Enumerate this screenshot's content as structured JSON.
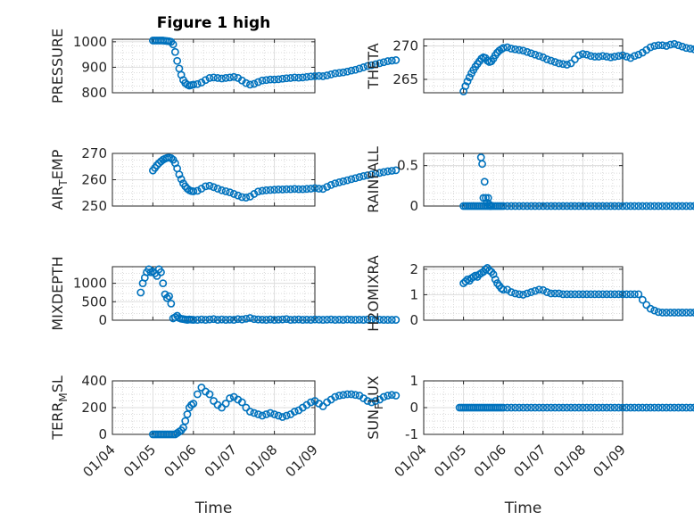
{
  "figure": {
    "title": "Figure 1 high"
  },
  "marker_color": "#0072bd",
  "chart_data": [
    {
      "type": "scatter",
      "name": "pressure",
      "ylabel": "PRESSURE",
      "ylabel_sub": "",
      "ylim": [
        800,
        1010
      ],
      "yticks": [
        800,
        900,
        1000
      ],
      "ytick_labels": [
        "800",
        "900",
        "1000"
      ],
      "xticks": [],
      "xtick_labels": [],
      "xlabel": "",
      "title": "Figure 1 high",
      "x": [
        1.0,
        1.05,
        1.1,
        1.15,
        1.2,
        1.25,
        1.3,
        1.35,
        1.4,
        1.45,
        1.5,
        1.55,
        1.6,
        1.65,
        1.7,
        1.75,
        1.8,
        1.85,
        1.9,
        1.95,
        2.0,
        2.1,
        2.2,
        2.3,
        2.4,
        2.5,
        2.6,
        2.7,
        2.8,
        2.9,
        3.0,
        3.1,
        3.2,
        3.3,
        3.4,
        3.5,
        3.6,
        3.7,
        3.8,
        3.9,
        4.0,
        4.1,
        4.2,
        4.3,
        4.4,
        4.5,
        4.6,
        4.7,
        4.8,
        4.9,
        5.0,
        5.1,
        5.2,
        5.3,
        5.4,
        5.5,
        5.6,
        5.7,
        5.8,
        5.9,
        6.0,
        6.1,
        6.2,
        6.3,
        6.4,
        6.5,
        6.6,
        6.7,
        6.8,
        6.9,
        7.0
      ],
      "y": [
        1005,
        1005,
        1005,
        1005,
        1005,
        1005,
        1004,
        1003,
        1002,
        1000,
        990,
        960,
        925,
        895,
        870,
        850,
        838,
        832,
        828,
        830,
        832,
        834,
        840,
        850,
        858,
        860,
        858,
        856,
        858,
        860,
        862,
        858,
        848,
        838,
        832,
        835,
        842,
        848,
        850,
        852,
        852,
        853,
        855,
        857,
        858,
        860,
        859,
        860,
        862,
        864,
        865,
        866,
        865,
        868,
        872,
        876,
        878,
        880,
        883,
        887,
        890,
        895,
        900,
        905,
        908,
        912,
        916,
        920,
        924,
        926,
        928
      ]
    },
    {
      "type": "scatter",
      "name": "theta",
      "ylabel": "THETA",
      "ylabel_sub": "",
      "ylim": [
        263,
        271
      ],
      "yticks": [
        265,
        270
      ],
      "ytick_labels": [
        "265",
        "270"
      ],
      "xticks": [],
      "xtick_labels": [],
      "xlabel": "",
      "title": "",
      "x": [
        1.0,
        1.05,
        1.1,
        1.15,
        1.2,
        1.25,
        1.3,
        1.35,
        1.4,
        1.45,
        1.5,
        1.55,
        1.6,
        1.65,
        1.7,
        1.75,
        1.8,
        1.85,
        1.9,
        1.95,
        2.0,
        2.1,
        2.2,
        2.3,
        2.4,
        2.5,
        2.6,
        2.7,
        2.8,
        2.9,
        3.0,
        3.1,
        3.2,
        3.3,
        3.4,
        3.5,
        3.6,
        3.7,
        3.8,
        3.9,
        4.0,
        4.1,
        4.2,
        4.3,
        4.4,
        4.5,
        4.6,
        4.7,
        4.8,
        4.9,
        5.0,
        5.1,
        5.2,
        5.3,
        5.4,
        5.5,
        5.6,
        5.7,
        5.8,
        5.9,
        6.0,
        6.1,
        6.2,
        6.3,
        6.4,
        6.5,
        6.6,
        6.7,
        6.8,
        6.9,
        7.0
      ],
      "y": [
        263.2,
        264.0,
        264.7,
        265.3,
        265.9,
        266.4,
        266.9,
        267.3,
        267.7,
        268.1,
        268.3,
        268.2,
        267.8,
        267.6,
        267.7,
        268.1,
        268.6,
        269.0,
        269.3,
        269.5,
        269.7,
        269.8,
        269.6,
        269.5,
        269.4,
        269.3,
        269.1,
        268.9,
        268.7,
        268.5,
        268.3,
        268.0,
        267.8,
        267.6,
        267.4,
        267.3,
        267.2,
        267.4,
        268.0,
        268.6,
        268.8,
        268.7,
        268.5,
        268.4,
        268.4,
        268.5,
        268.4,
        268.3,
        268.4,
        268.5,
        268.6,
        268.4,
        268.2,
        268.5,
        268.7,
        269.0,
        269.4,
        269.8,
        270.0,
        270.1,
        270.1,
        270.0,
        270.2,
        270.3,
        270.1,
        269.9,
        269.7,
        269.6,
        269.5,
        269.4,
        269.3
      ]
    },
    {
      "type": "scatter",
      "name": "air-temp",
      "ylabel": "AIR",
      "ylabel_sub": "T",
      "ylabel_tail": "EMP",
      "ylim": [
        250,
        270
      ],
      "yticks": [
        250,
        260,
        270
      ],
      "ytick_labels": [
        "250",
        "260",
        "270"
      ],
      "xticks": [],
      "xtick_labels": [],
      "xlabel": "",
      "title": "",
      "x": [
        1.0,
        1.05,
        1.1,
        1.15,
        1.2,
        1.25,
        1.3,
        1.35,
        1.4,
        1.45,
        1.5,
        1.55,
        1.6,
        1.65,
        1.7,
        1.75,
        1.8,
        1.85,
        1.9,
        1.95,
        2.0,
        2.1,
        2.2,
        2.3,
        2.4,
        2.5,
        2.6,
        2.7,
        2.8,
        2.9,
        3.0,
        3.1,
        3.2,
        3.3,
        3.4,
        3.5,
        3.6,
        3.7,
        3.8,
        3.9,
        4.0,
        4.1,
        4.2,
        4.3,
        4.4,
        4.5,
        4.6,
        4.7,
        4.8,
        4.9,
        5.0,
        5.1,
        5.2,
        5.3,
        5.4,
        5.5,
        5.6,
        5.7,
        5.8,
        5.9,
        6.0,
        6.1,
        6.2,
        6.3,
        6.4,
        6.5,
        6.6,
        6.7,
        6.8,
        6.9,
        7.0
      ],
      "y": [
        263.5,
        264.5,
        265.5,
        266.3,
        267.0,
        267.6,
        268.0,
        268.3,
        268.4,
        268.2,
        267.6,
        266.3,
        264.3,
        262.0,
        260.2,
        258.6,
        257.5,
        256.6,
        256.0,
        255.7,
        255.6,
        255.8,
        256.6,
        257.5,
        257.7,
        257.2,
        256.6,
        256.0,
        255.6,
        255.2,
        254.6,
        254.0,
        253.4,
        253.2,
        253.6,
        254.6,
        255.5,
        255.8,
        256.0,
        256.1,
        256.2,
        256.3,
        256.3,
        256.4,
        256.4,
        256.5,
        256.4,
        256.4,
        256.5,
        256.6,
        256.8,
        256.6,
        256.5,
        257.3,
        258.0,
        258.6,
        259.0,
        259.4,
        259.8,
        260.2,
        260.6,
        261.0,
        261.4,
        261.7,
        262.0,
        262.3,
        262.6,
        262.9,
        263.2,
        263.4,
        263.6
      ]
    },
    {
      "type": "scatter",
      "name": "rainfall",
      "ylabel": "RAINFALL",
      "ylabel_sub": "",
      "ylim": [
        0,
        0.65
      ],
      "yticks": [
        0,
        0.5
      ],
      "ytick_labels": [
        "0",
        "0.5"
      ],
      "xticks": [],
      "xtick_labels": [],
      "xlabel": "",
      "title": "",
      "x": [
        1.0,
        1.05,
        1.1,
        1.15,
        1.2,
        1.25,
        1.3,
        1.35,
        1.4,
        1.45,
        1.5,
        1.55,
        1.6,
        1.65,
        1.7,
        1.75,
        1.8,
        1.85,
        1.9,
        1.95,
        2.0,
        2.1,
        2.2,
        2.3,
        2.4,
        2.5,
        2.6,
        2.7,
        2.8,
        2.9,
        3.0,
        3.1,
        3.2,
        3.3,
        3.4,
        3.5,
        3.6,
        3.7,
        3.8,
        3.9,
        4.0,
        4.1,
        4.2,
        4.3,
        4.4,
        4.5,
        4.6,
        4.7,
        4.8,
        4.9,
        5.0,
        5.1,
        5.2,
        5.3,
        5.4,
        5.5,
        5.6,
        5.7,
        5.8,
        5.9,
        6.0,
        6.1,
        6.2,
        6.3,
        6.4,
        6.5,
        6.6,
        6.7,
        6.8,
        6.9,
        7.0,
        1.44,
        1.47,
        1.5,
        1.53,
        1.56,
        1.59,
        1.62,
        1.65,
        1.68
      ],
      "y": [
        0,
        0,
        0,
        0,
        0,
        0,
        0,
        0,
        0,
        0,
        0,
        0,
        0,
        0,
        0,
        0,
        0,
        0,
        0,
        0,
        0,
        0,
        0,
        0,
        0,
        0,
        0,
        0,
        0,
        0,
        0,
        0,
        0,
        0,
        0,
        0,
        0,
        0,
        0,
        0,
        0,
        0,
        0,
        0,
        0,
        0,
        0,
        0,
        0,
        0,
        0,
        0,
        0,
        0,
        0,
        0,
        0,
        0,
        0,
        0,
        0,
        0,
        0,
        0,
        0,
        0,
        0,
        0,
        0,
        0,
        0,
        0.6,
        0.52,
        0.1,
        0.3,
        0.1,
        0.04,
        0.1,
        0.02,
        0
      ]
    },
    {
      "type": "scatter",
      "name": "mixdepth",
      "ylabel": "MIXDEPTH",
      "ylabel_sub": "",
      "ylim": [
        0,
        1450
      ],
      "yticks": [
        0,
        500,
        1000
      ],
      "ytick_labels": [
        "0",
        "500",
        "1000"
      ],
      "xticks": [],
      "xtick_labels": [],
      "xlabel": "",
      "title": "",
      "x": [
        0.7,
        0.75,
        0.8,
        0.85,
        0.9,
        0.95,
        1.0,
        1.05,
        1.1,
        1.15,
        1.2,
        1.25,
        1.3,
        1.35,
        1.4,
        1.45,
        1.5,
        1.55,
        1.6,
        1.65,
        1.7,
        1.75,
        1.8,
        1.85,
        1.9,
        1.95,
        2.0,
        2.1,
        2.2,
        2.3,
        2.4,
        2.5,
        2.6,
        2.7,
        2.8,
        2.9,
        3.0,
        3.1,
        3.2,
        3.3,
        3.4,
        3.5,
        3.6,
        3.7,
        3.8,
        3.9,
        4.0,
        4.1,
        4.2,
        4.3,
        4.4,
        4.5,
        4.6,
        4.7,
        4.8,
        4.9,
        5.0,
        5.1,
        5.2,
        5.3,
        5.4,
        5.5,
        5.6,
        5.7,
        5.8,
        5.9,
        6.0,
        6.1,
        6.2,
        6.3,
        6.4,
        6.5,
        6.6,
        6.7,
        6.8,
        6.9,
        7.0
      ],
      "y": [
        750,
        1000,
        1150,
        1300,
        1380,
        1300,
        1320,
        1270,
        1200,
        1380,
        1300,
        1000,
        700,
        600,
        650,
        450,
        50,
        80,
        120,
        60,
        40,
        30,
        20,
        10,
        20,
        15,
        10,
        10,
        20,
        10,
        20,
        30,
        10,
        20,
        10,
        15,
        10,
        30,
        20,
        40,
        60,
        30,
        20,
        15,
        10,
        20,
        10,
        15,
        20,
        30,
        10,
        15,
        20,
        10,
        15,
        10,
        20,
        15,
        10,
        15,
        20,
        10,
        15,
        10,
        20,
        15,
        10,
        15,
        10,
        20,
        15,
        10,
        15,
        10,
        10,
        10,
        10
      ]
    },
    {
      "type": "scatter",
      "name": "h2omixra",
      "ylabel": "H2OMIXRA",
      "ylabel_sub": "",
      "ylim": [
        0,
        2.1
      ],
      "yticks": [
        0,
        1,
        2
      ],
      "ytick_labels": [
        "0",
        "1",
        "2"
      ],
      "xticks": [],
      "xtick_labels": [],
      "xlabel": "",
      "title": "",
      "x": [
        1.0,
        1.05,
        1.1,
        1.15,
        1.2,
        1.25,
        1.3,
        1.35,
        1.4,
        1.45,
        1.5,
        1.55,
        1.6,
        1.65,
        1.7,
        1.75,
        1.8,
        1.85,
        1.9,
        1.95,
        2.0,
        2.1,
        2.2,
        2.3,
        2.4,
        2.5,
        2.6,
        2.7,
        2.8,
        2.9,
        3.0,
        3.1,
        3.2,
        3.3,
        3.4,
        3.5,
        3.6,
        3.7,
        3.8,
        3.9,
        4.0,
        4.1,
        4.2,
        4.3,
        4.4,
        4.5,
        4.6,
        4.7,
        4.8,
        4.9,
        5.0,
        5.1,
        5.2,
        5.3,
        5.4,
        5.5,
        5.6,
        5.7,
        5.8,
        5.9,
        6.0,
        6.1,
        6.2,
        6.3,
        6.4,
        6.5,
        6.6,
        6.7,
        6.8,
        6.9,
        7.0
      ],
      "y": [
        1.45,
        1.52,
        1.6,
        1.55,
        1.65,
        1.7,
        1.75,
        1.7,
        1.8,
        1.85,
        1.9,
        2.0,
        2.05,
        1.95,
        1.9,
        1.8,
        1.6,
        1.45,
        1.35,
        1.25,
        1.2,
        1.2,
        1.1,
        1.05,
        1.02,
        1.0,
        1.05,
        1.1,
        1.15,
        1.2,
        1.18,
        1.1,
        1.05,
        1.05,
        1.05,
        1.02,
        1.02,
        1.02,
        1.02,
        1.02,
        1.02,
        1.02,
        1.02,
        1.02,
        1.02,
        1.02,
        1.02,
        1.02,
        1.02,
        1.02,
        1.02,
        1.02,
        1.02,
        1.02,
        1.02,
        0.8,
        0.6,
        0.45,
        0.38,
        0.32,
        0.3,
        0.3,
        0.3,
        0.3,
        0.3,
        0.3,
        0.3,
        0.3,
        0.3,
        0.3,
        0.3
      ]
    },
    {
      "type": "scatter",
      "name": "terrain-msl",
      "ylabel": "TERR",
      "ylabel_sub": "M",
      "ylabel_tail": "SL",
      "ylim": [
        0,
        400
      ],
      "yticks": [
        0,
        200,
        400
      ],
      "ytick_labels": [
        "0",
        "200",
        "400"
      ],
      "xticks": [
        0,
        1,
        2,
        3,
        4,
        5
      ],
      "xtick_labels": [
        "01/04",
        "01/05",
        "01/06",
        "01/07",
        "01/08",
        "01/09"
      ],
      "xlabel": "Time",
      "title": "",
      "x": [
        1.0,
        1.05,
        1.1,
        1.15,
        1.2,
        1.25,
        1.3,
        1.35,
        1.4,
        1.45,
        1.5,
        1.55,
        1.6,
        1.65,
        1.7,
        1.75,
        1.8,
        1.85,
        1.9,
        1.95,
        2.0,
        2.1,
        2.2,
        2.3,
        2.4,
        2.5,
        2.6,
        2.7,
        2.8,
        2.9,
        3.0,
        3.1,
        3.2,
        3.3,
        3.4,
        3.5,
        3.6,
        3.7,
        3.8,
        3.9,
        4.0,
        4.1,
        4.2,
        4.3,
        4.4,
        4.5,
        4.6,
        4.7,
        4.8,
        4.9,
        5.0,
        5.1,
        5.2,
        5.3,
        5.4,
        5.5,
        5.6,
        5.7,
        5.8,
        5.9,
        6.0,
        6.1,
        6.2,
        6.3,
        6.4,
        6.5,
        6.6,
        6.7,
        6.8,
        6.9,
        7.0
      ],
      "y": [
        0,
        0,
        0,
        0,
        0,
        0,
        0,
        0,
        0,
        0,
        0,
        0,
        10,
        20,
        30,
        50,
        100,
        150,
        200,
        220,
        230,
        300,
        350,
        320,
        300,
        250,
        220,
        200,
        230,
        270,
        280,
        260,
        240,
        200,
        170,
        160,
        150,
        140,
        150,
        160,
        150,
        140,
        130,
        140,
        150,
        170,
        180,
        200,
        220,
        240,
        250,
        230,
        210,
        240,
        260,
        280,
        290,
        295,
        300,
        300,
        295,
        290,
        270,
        250,
        240,
        250,
        260,
        280,
        290,
        295,
        290
      ]
    },
    {
      "type": "scatter",
      "name": "sun-flux",
      "ylabel": "SUN",
      "ylabel_sub": "F",
      "ylabel_tail": "LUX",
      "ylim": [
        -1,
        1
      ],
      "yticks": [
        -1,
        0,
        1
      ],
      "ytick_labels": [
        "-1",
        "0",
        "1"
      ],
      "xticks": [
        0,
        1,
        2,
        3,
        4,
        5
      ],
      "xtick_labels": [
        "01/04",
        "01/05",
        "01/06",
        "01/07",
        "01/08",
        "01/09"
      ],
      "xlabel": "Time",
      "title": "",
      "x": [
        0.9,
        0.95,
        1.0,
        1.05,
        1.1,
        1.15,
        1.2,
        1.25,
        1.3,
        1.35,
        1.4,
        1.45,
        1.5,
        1.55,
        1.6,
        1.65,
        1.7,
        1.75,
        1.8,
        1.85,
        1.9,
        1.95,
        2.0,
        2.1,
        2.2,
        2.3,
        2.4,
        2.5,
        2.6,
        2.7,
        2.8,
        2.9,
        3.0,
        3.1,
        3.2,
        3.3,
        3.4,
        3.5,
        3.6,
        3.7,
        3.8,
        3.9,
        4.0,
        4.1,
        4.2,
        4.3,
        4.4,
        4.5,
        4.6,
        4.7,
        4.8,
        4.9,
        5.0,
        5.1,
        5.2,
        5.3,
        5.4,
        5.5,
        5.6,
        5.7,
        5.8,
        5.9,
        6.0,
        6.1,
        6.2,
        6.3,
        6.4,
        6.5,
        6.6,
        6.7,
        6.8,
        6.9,
        7.0
      ],
      "y": [
        0,
        0,
        0,
        0,
        0,
        0,
        0,
        0,
        0,
        0,
        0,
        0,
        0,
        0,
        0,
        0,
        0,
        0,
        0,
        0,
        0,
        0,
        0,
        0,
        0,
        0,
        0,
        0,
        0,
        0,
        0,
        0,
        0,
        0,
        0,
        0,
        0,
        0,
        0,
        0,
        0,
        0,
        0,
        0,
        0,
        0,
        0,
        0,
        0,
        0,
        0,
        0,
        0,
        0,
        0,
        0,
        0,
        0,
        0,
        0,
        0,
        0,
        0,
        0,
        0,
        0,
        0,
        0,
        0,
        0,
        0,
        0,
        0
      ]
    }
  ]
}
